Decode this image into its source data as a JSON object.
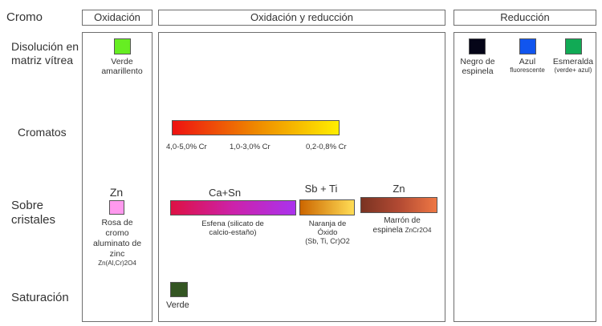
{
  "corner": "Cromo",
  "columns": {
    "oxidacion": "Oxidación",
    "oxred": "Oxidación y reducción",
    "reduccion": "Reducción"
  },
  "rows": {
    "disolucion_l1": "Disolución en",
    "disolucion_l2": "matriz vítrea",
    "cromatos": "Cromatos",
    "sobre_l1": "Sobre",
    "sobre_l2": "cristales",
    "saturacion": "Saturación"
  },
  "disolucion": {
    "verde_amarillento": {
      "l1": "Verde",
      "l2": "amarillento",
      "color": "#66ee22"
    },
    "negro": {
      "l1": "Negro de",
      "l2": "espinela",
      "color": "#050518"
    },
    "azul": {
      "l1": "Azul",
      "l2": "fluorescente",
      "color": "#1155ee"
    },
    "esmeralda": {
      "l1": "Esmeralda",
      "l2": "(verde+ azul)",
      "color": "#11aa55"
    }
  },
  "cromatos": {
    "labels": [
      "4,0-5,0% Cr",
      "1,0-3,0% Cr",
      "0,2-0,8% Cr"
    ],
    "gradient": [
      "#ee1111",
      "#ee8800",
      "#ffee00"
    ]
  },
  "sobre": {
    "rosa": {
      "title": "Zn",
      "lines": [
        "Rosa de",
        "cromo",
        "aluminato de",
        "zinc"
      ],
      "formula": "Zn(Al,Cr)2O4",
      "color": "#ff99ee"
    },
    "esfena": {
      "title": "Ca+Sn",
      "l1": "Esfena (silicato de",
      "l2": "calcio-estaño)",
      "gradient": [
        "#dd1144",
        "#cc22aa",
        "#aa33ee"
      ]
    },
    "naranja": {
      "title": "Sb + Ti",
      "lines": [
        "Naranja de",
        "Óxido",
        "(Sb, Ti, Cr)O2"
      ],
      "gradient": [
        "#cc6600",
        "#ffdd55"
      ]
    },
    "marron": {
      "title": "Zn",
      "l1": "Marrón de",
      "l2_main": "espinela",
      "l2_formula": "ZnCr2O4",
      "gradient": [
        "#7a3322",
        "#b24a33",
        "#ee7744"
      ]
    }
  },
  "saturacion": {
    "verde": {
      "label": "Verde",
      "color": "#335522"
    }
  }
}
